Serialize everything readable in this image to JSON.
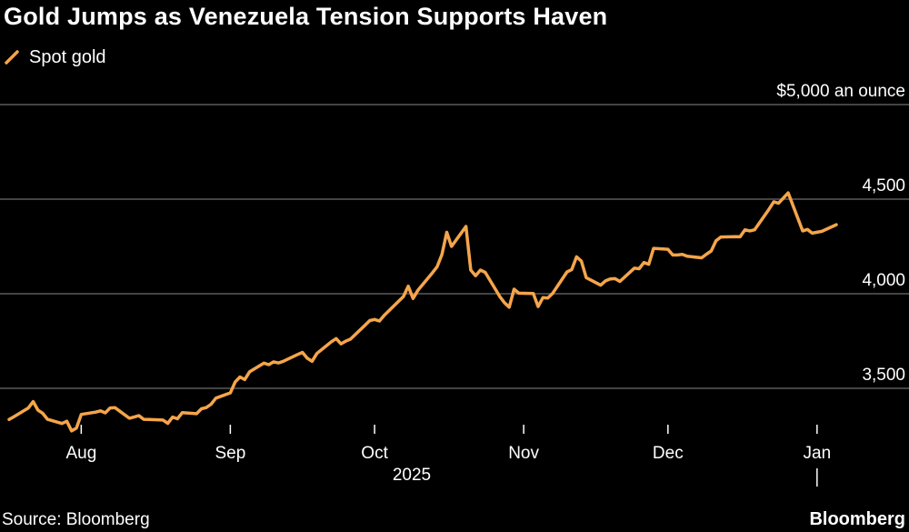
{
  "title": "Gold Jumps as Venezuela Tension Supports Haven",
  "source": "Source: Bloomberg",
  "brand": "Bloomberg",
  "colors": {
    "background": "#000000",
    "line": "#f5a54a",
    "grid": "#5a5a5a",
    "text": "#ffffff"
  },
  "chart_data": {
    "type": "line",
    "title": "Gold Jumps as Venezuela Tension Supports Haven",
    "ylabel": "",
    "xlabel": "",
    "unit_label": "$5,000 an ounce",
    "year_label": "2025",
    "ylim": [
      3300,
      5000
    ],
    "yticks": [
      3500,
      4000,
      4500,
      5000
    ],
    "ytick_labels": [
      "3,500",
      "4,000",
      "4,500",
      "$5,000 an ounce"
    ],
    "xlim": [
      "2025-07-17",
      "2026-01-07"
    ],
    "xticks": [
      {
        "date": "2025-08-01",
        "label": "Aug"
      },
      {
        "date": "2025-09-01",
        "label": "Sep"
      },
      {
        "date": "2025-10-01",
        "label": "Oct"
      },
      {
        "date": "2025-11-01",
        "label": "Nov"
      },
      {
        "date": "2025-12-01",
        "label": "Dec"
      },
      {
        "date": "2026-01-01",
        "label": "Jan"
      }
    ],
    "grid": true,
    "legend": "top-left",
    "series": [
      {
        "name": "Spot gold",
        "points": [
          [
            "2025-07-17",
            3335
          ],
          [
            "2025-07-18",
            3350
          ],
          [
            "2025-07-21",
            3396
          ],
          [
            "2025-07-22",
            3430
          ],
          [
            "2025-07-23",
            3385
          ],
          [
            "2025-07-24",
            3368
          ],
          [
            "2025-07-25",
            3336
          ],
          [
            "2025-07-28",
            3314
          ],
          [
            "2025-07-29",
            3326
          ],
          [
            "2025-07-30",
            3275
          ],
          [
            "2025-07-31",
            3290
          ],
          [
            "2025-08-01",
            3362
          ],
          [
            "2025-08-04",
            3374
          ],
          [
            "2025-08-05",
            3381
          ],
          [
            "2025-08-06",
            3370
          ],
          [
            "2025-08-07",
            3396
          ],
          [
            "2025-08-08",
            3398
          ],
          [
            "2025-08-11",
            3342
          ],
          [
            "2025-08-12",
            3348
          ],
          [
            "2025-08-13",
            3356
          ],
          [
            "2025-08-14",
            3336
          ],
          [
            "2025-08-15",
            3335
          ],
          [
            "2025-08-18",
            3332
          ],
          [
            "2025-08-19",
            3315
          ],
          [
            "2025-08-20",
            3348
          ],
          [
            "2025-08-21",
            3339
          ],
          [
            "2025-08-22",
            3371
          ],
          [
            "2025-08-25",
            3366
          ],
          [
            "2025-08-26",
            3392
          ],
          [
            "2025-08-27",
            3398
          ],
          [
            "2025-08-28",
            3416
          ],
          [
            "2025-08-29",
            3448
          ],
          [
            "2025-09-01",
            3476
          ],
          [
            "2025-09-02",
            3533
          ],
          [
            "2025-09-03",
            3560
          ],
          [
            "2025-09-04",
            3546
          ],
          [
            "2025-09-05",
            3587
          ],
          [
            "2025-09-08",
            3633
          ],
          [
            "2025-09-09",
            3625
          ],
          [
            "2025-09-10",
            3640
          ],
          [
            "2025-09-11",
            3634
          ],
          [
            "2025-09-12",
            3643
          ],
          [
            "2025-09-15",
            3679
          ],
          [
            "2025-09-16",
            3690
          ],
          [
            "2025-09-17",
            3659
          ],
          [
            "2025-09-18",
            3643
          ],
          [
            "2025-09-19",
            3684
          ],
          [
            "2025-09-22",
            3746
          ],
          [
            "2025-09-23",
            3763
          ],
          [
            "2025-09-24",
            3735
          ],
          [
            "2025-09-25",
            3749
          ],
          [
            "2025-09-26",
            3760
          ],
          [
            "2025-09-29",
            3833
          ],
          [
            "2025-09-30",
            3858
          ],
          [
            "2025-10-01",
            3864
          ],
          [
            "2025-10-02",
            3856
          ],
          [
            "2025-10-03",
            3886
          ],
          [
            "2025-10-06",
            3960
          ],
          [
            "2025-10-07",
            3985
          ],
          [
            "2025-10-08",
            4040
          ],
          [
            "2025-10-09",
            3975
          ],
          [
            "2025-10-10",
            4018
          ],
          [
            "2025-10-13",
            4110
          ],
          [
            "2025-10-14",
            4143
          ],
          [
            "2025-10-15",
            4208
          ],
          [
            "2025-10-16",
            4325
          ],
          [
            "2025-10-17",
            4250
          ],
          [
            "2025-10-20",
            4356
          ],
          [
            "2025-10-21",
            4125
          ],
          [
            "2025-10-22",
            4095
          ],
          [
            "2025-10-23",
            4125
          ],
          [
            "2025-10-24",
            4113
          ],
          [
            "2025-10-27",
            3986
          ],
          [
            "2025-10-28",
            3953
          ],
          [
            "2025-10-29",
            3929
          ],
          [
            "2025-10-30",
            4024
          ],
          [
            "2025-10-31",
            4003
          ],
          [
            "2025-11-03",
            4001
          ],
          [
            "2025-11-04",
            3932
          ],
          [
            "2025-11-05",
            3980
          ],
          [
            "2025-11-06",
            3977
          ],
          [
            "2025-11-07",
            4001
          ],
          [
            "2025-11-10",
            4115
          ],
          [
            "2025-11-11",
            4128
          ],
          [
            "2025-11-12",
            4195
          ],
          [
            "2025-11-13",
            4172
          ],
          [
            "2025-11-14",
            4085
          ],
          [
            "2025-11-17",
            4045
          ],
          [
            "2025-11-18",
            4068
          ],
          [
            "2025-11-19",
            4078
          ],
          [
            "2025-11-20",
            4080
          ],
          [
            "2025-11-21",
            4065
          ],
          [
            "2025-11-24",
            4135
          ],
          [
            "2025-11-25",
            4132
          ],
          [
            "2025-11-26",
            4165
          ],
          [
            "2025-11-27",
            4156
          ],
          [
            "2025-11-28",
            4240
          ],
          [
            "2025-12-01",
            4235
          ],
          [
            "2025-12-02",
            4205
          ],
          [
            "2025-12-03",
            4205
          ],
          [
            "2025-12-04",
            4208
          ],
          [
            "2025-12-05",
            4198
          ],
          [
            "2025-12-08",
            4190
          ],
          [
            "2025-12-09",
            4209
          ],
          [
            "2025-12-10",
            4226
          ],
          [
            "2025-12-11",
            4280
          ],
          [
            "2025-12-12",
            4300
          ],
          [
            "2025-12-15",
            4302
          ],
          [
            "2025-12-16",
            4301
          ],
          [
            "2025-12-17",
            4338
          ],
          [
            "2025-12-18",
            4332
          ],
          [
            "2025-12-19",
            4338
          ],
          [
            "2025-12-22",
            4446
          ],
          [
            "2025-12-23",
            4486
          ],
          [
            "2025-12-24",
            4479
          ],
          [
            "2025-12-26",
            4533
          ],
          [
            "2025-12-29",
            4332
          ],
          [
            "2025-12-30",
            4340
          ],
          [
            "2025-12-31",
            4320
          ],
          [
            "2026-01-02",
            4330
          ],
          [
            "2026-01-05",
            4365
          ]
        ]
      }
    ]
  }
}
